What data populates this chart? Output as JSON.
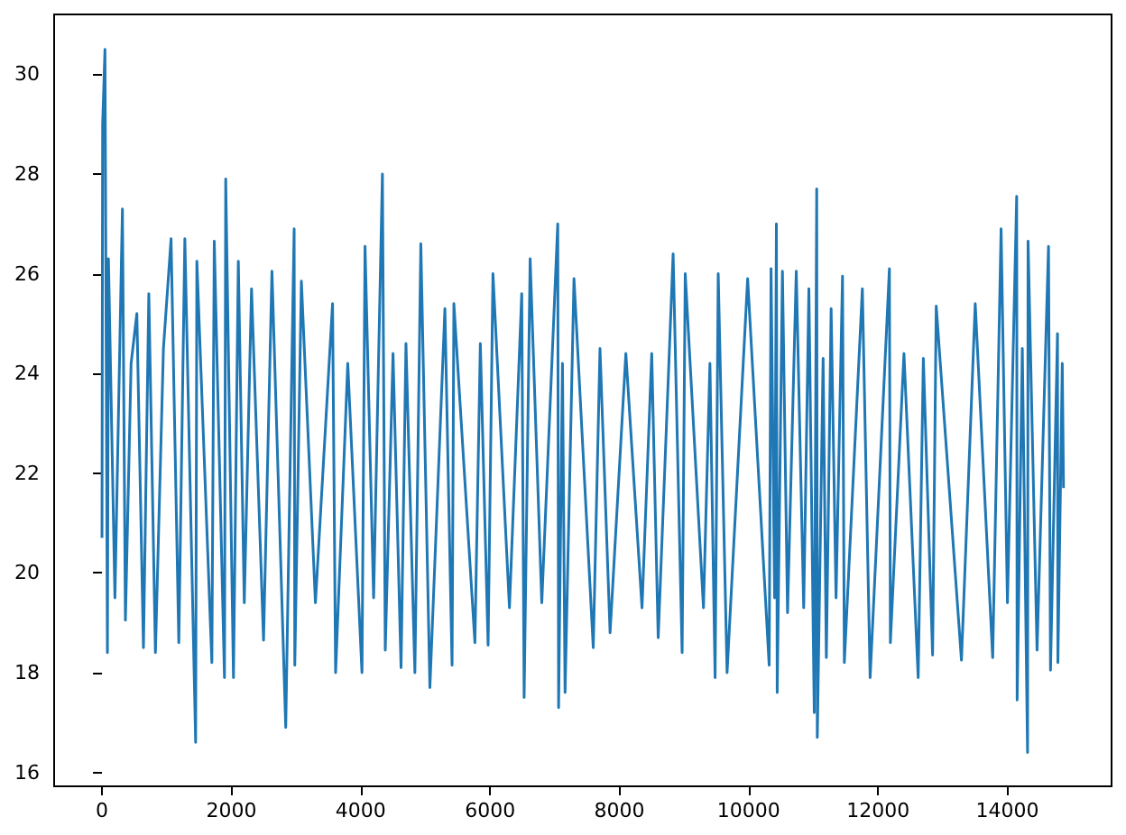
{
  "chart_data": {
    "type": "line",
    "color": "#1f77b4",
    "xlim": [
      -740,
      15610
    ],
    "ylim": [
      15.72,
      31.2
    ],
    "xticks": [
      0,
      2000,
      4000,
      6000,
      8000,
      10000,
      12000,
      14000
    ],
    "yticks": [
      16,
      18,
      20,
      22,
      24,
      26,
      28,
      30
    ],
    "x": [
      0,
      10,
      46,
      84,
      100,
      200,
      316,
      362,
      450,
      539,
      641,
      724,
      826,
      950,
      1068,
      1188,
      1281,
      1448,
      1467,
      1699,
      1736,
      1894,
      1913,
      2033,
      2108,
      2200,
      2312,
      2498,
      2628,
      2841,
      2971,
      2981,
      3083,
      3300,
      3565,
      3612,
      3800,
      4020,
      4067,
      4200,
      4336,
      4380,
      4500,
      4624,
      4700,
      4838,
      4930,
      5070,
      5302,
      5413,
      5441,
      5766,
      5850,
      5970,
      6045,
      6300,
      6490,
      6527,
      6620,
      6800,
      7047,
      7060,
      7120,
      7160,
      7298,
      7596,
      7700,
      7856,
      8100,
      8350,
      8500,
      8600,
      8831,
      8970,
      9018,
      9300,
      9400,
      9480,
      9528,
      9665,
      9983,
      10316,
      10345,
      10400,
      10428,
      10440,
      10521,
      10600,
      10735,
      10850,
      10930,
      11013,
      11051,
      11060,
      11150,
      11200,
      11274,
      11350,
      11450,
      11478,
      11757,
      11877,
      12175,
      12190,
      12400,
      12620,
      12700,
      12843,
      12899,
      13289,
      13502,
      13772,
      13902,
      14000,
      14143,
      14150,
      14230,
      14311,
      14319,
      14458,
      14635,
      14666,
      14774,
      14780,
      14848,
      14867
    ],
    "values": [
      20.7,
      29.0,
      30.5,
      18.4,
      26.3,
      19.5,
      27.3,
      19.05,
      24.2,
      25.2,
      18.5,
      25.6,
      18.4,
      24.5,
      26.7,
      18.6,
      26.7,
      16.6,
      26.25,
      18.2,
      26.65,
      17.9,
      27.9,
      17.9,
      26.25,
      19.4,
      25.7,
      18.65,
      26.05,
      16.9,
      26.9,
      18.15,
      25.85,
      19.4,
      25.4,
      18.0,
      24.2,
      18.0,
      26.55,
      19.5,
      28.0,
      18.45,
      24.4,
      18.1,
      24.6,
      18.0,
      26.6,
      17.7,
      25.3,
      18.15,
      25.4,
      18.6,
      24.6,
      18.55,
      26.0,
      19.3,
      25.6,
      17.5,
      26.3,
      19.4,
      27.0,
      17.3,
      24.2,
      17.6,
      25.9,
      18.5,
      24.5,
      18.8,
      24.4,
      19.3,
      24.4,
      18.7,
      26.4,
      18.4,
      26.0,
      19.3,
      24.2,
      17.9,
      26.0,
      18.0,
      25.9,
      18.15,
      26.1,
      19.5,
      27.0,
      17.6,
      26.05,
      19.2,
      26.05,
      19.3,
      25.7,
      17.2,
      27.7,
      16.7,
      24.3,
      18.3,
      25.3,
      19.5,
      25.95,
      18.2,
      25.7,
      17.9,
      26.1,
      18.6,
      24.4,
      17.9,
      24.3,
      18.35,
      25.35,
      18.25,
      25.4,
      18.3,
      26.9,
      19.4,
      27.55,
      17.45,
      24.5,
      16.4,
      26.65,
      18.45,
      26.55,
      18.05,
      24.8,
      18.2,
      24.2,
      21.7
    ]
  }
}
